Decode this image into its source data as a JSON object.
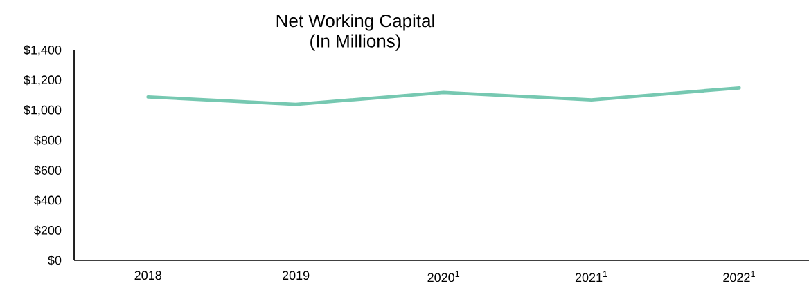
{
  "chart_data": {
    "type": "line",
    "title": "Net Working Capital",
    "subtitle": "(In Millions)",
    "categories": [
      "2018",
      "2019",
      "2020$^{1}$",
      "2021$^{1}$",
      "2022$^{1}$"
    ],
    "series": [
      {
        "color": "#76c8b1",
        "values": [
          1090,
          1040,
          1120,
          1070,
          1150
        ]
      }
    ],
    "ylim": [
      0,
      1400
    ],
    "yticks": [
      {
        "value": 0,
        "label": "$0"
      },
      {
        "value": 200,
        "label": "$200"
      },
      {
        "value": 400,
        "label": "$400"
      },
      {
        "value": 600,
        "label": "$600"
      },
      {
        "value": 800,
        "label": "$800"
      },
      {
        "value": 1000,
        "label": "$1,000"
      },
      {
        "value": 1200,
        "label": "$1,200"
      },
      {
        "value": 1400,
        "label": "$1,400"
      }
    ],
    "grid": false,
    "legend": false,
    "marker": "none",
    "line_style": "solid"
  }
}
